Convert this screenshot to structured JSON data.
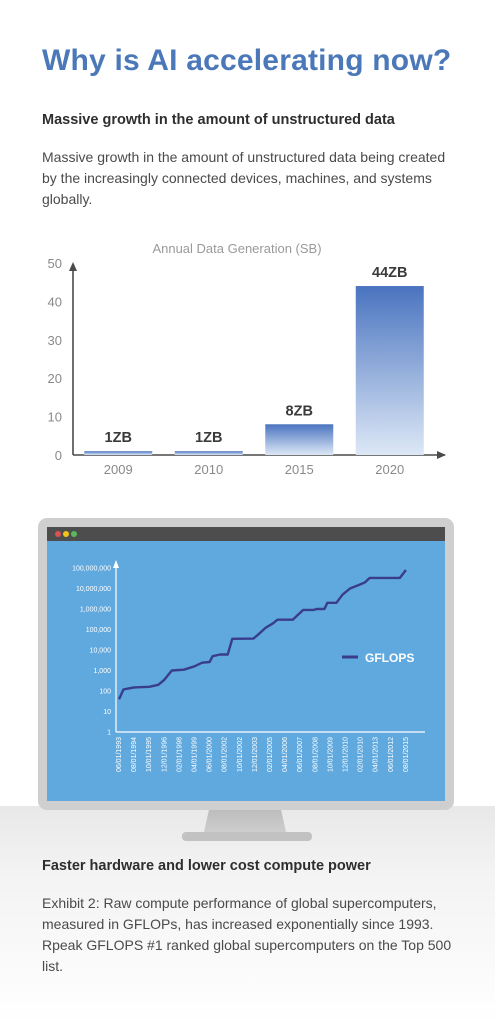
{
  "page": {
    "title": "Why is AI accelerating now?",
    "section1_heading": "Massive growth in the amount of unstructured data",
    "section1_text": "Massive growth in the amount of unstructured data being created by the increasingly connected devices, machines, and systems globally.",
    "section2_heading": "Faster hardware and lower cost compute power",
    "section2_text": "Exhibit 2: Raw compute performance of global supercomputers, measured in GFLOPs, has increased exponentially since 1993. Rpeak GFLOPS #1 ranked global supercomputers on the Top 500 list."
  },
  "colors": {
    "title": "#4a78b8",
    "bar_top": "#4a74c0",
    "bar_bottom": "#dde8f6",
    "screen": "#5fa9df",
    "line": "#3a3c8c"
  },
  "window_dot_colors": [
    "#d9534f",
    "#f0c419",
    "#5cb85c"
  ],
  "chart_data": [
    {
      "type": "bar",
      "title": "Annual Data Generation (SB)",
      "categories": [
        "2009",
        "2010",
        "2015",
        "2020"
      ],
      "values": [
        1,
        1,
        8,
        44
      ],
      "data_labels": [
        "1ZB",
        "1ZB",
        "8ZB",
        "44ZB"
      ],
      "ylim": [
        0,
        50
      ],
      "yticks": [
        0,
        10,
        20,
        30,
        40,
        50
      ],
      "xlabel": "",
      "ylabel": "",
      "grid": false,
      "legend": "none"
    },
    {
      "type": "line",
      "yscale": "log",
      "ylim": [
        1,
        100000000
      ],
      "yticks": [
        1,
        10,
        100,
        1000,
        10000,
        100000,
        1000000,
        10000000,
        100000000
      ],
      "ytick_labels": [
        "1",
        "10",
        "100",
        "1,000",
        "10,000",
        "100,000",
        "1,000,000",
        "10,000,000",
        "100,000,000"
      ],
      "categories": [
        "06/01/1993",
        "08/01/1994",
        "10/01/1995",
        "12/01/1996",
        "02/01/1998",
        "04/01/1999",
        "06/01/2000",
        "08/01/2002",
        "10/01/2002",
        "12/01/2003",
        "02/01/2005",
        "04/01/2006",
        "06/01/2007",
        "08/01/2008",
        "10/01/2009",
        "12/01/2010",
        "02/01/2010",
        "04/01/2013",
        "06/01/2012",
        "08/01/2015"
      ],
      "series": [
        {
          "name": "GFLOPS",
          "points": [
            [
              0,
              40
            ],
            [
              0.3,
              120
            ],
            [
              1.0,
              150
            ],
            [
              2.0,
              160
            ],
            [
              2.6,
              200
            ],
            [
              3.0,
              350
            ],
            [
              3.5,
              1000
            ],
            [
              4.3,
              1100
            ],
            [
              5.0,
              1600
            ],
            [
              5.5,
              2400
            ],
            [
              6.0,
              2600
            ],
            [
              6.2,
              5000
            ],
            [
              6.7,
              6000
            ],
            [
              7.2,
              6000
            ],
            [
              7.5,
              35000
            ],
            [
              8.9,
              36000
            ],
            [
              9.2,
              55000
            ],
            [
              9.7,
              120000
            ],
            [
              10.2,
              200000
            ],
            [
              10.5,
              300000
            ],
            [
              11.5,
              300000
            ],
            [
              12.2,
              900000
            ],
            [
              12.9,
              900000
            ],
            [
              13.1,
              1000000
            ],
            [
              13.6,
              1000000
            ],
            [
              13.8,
              2000000
            ],
            [
              14.4,
              2000000
            ],
            [
              14.8,
              5000000
            ],
            [
              15.3,
              10000000
            ],
            [
              15.9,
              15000000
            ],
            [
              16.3,
              20000000
            ],
            [
              16.6,
              33000000
            ],
            [
              17.3,
              33000000
            ],
            [
              18.6,
              33000000
            ],
            [
              19.0,
              80000000
            ]
          ]
        }
      ],
      "legend": "right"
    }
  ]
}
